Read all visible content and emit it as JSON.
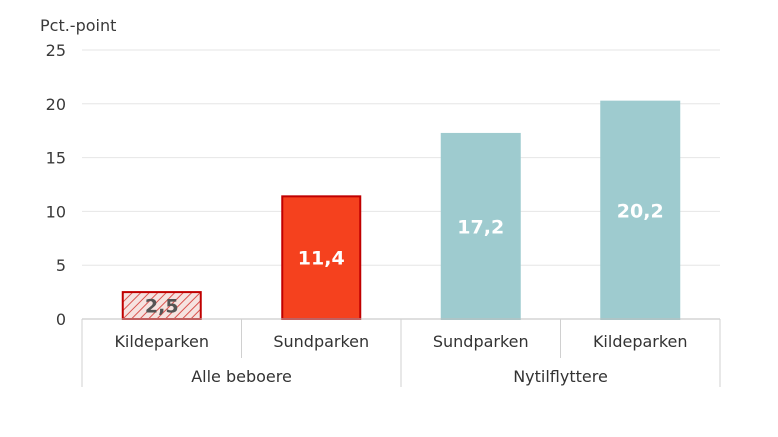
{
  "chart_data": {
    "type": "bar",
    "unit_label": "Pct.-point",
    "ylim": [
      0,
      25
    ],
    "yticks": [
      "0",
      "5",
      "10",
      "15",
      "20",
      "25"
    ],
    "grid": true,
    "groups": [
      {
        "label": "Alle beboere",
        "span": [
          0,
          1
        ]
      },
      {
        "label": "Nytilflyttere",
        "span": [
          2,
          3
        ]
      }
    ],
    "bars": [
      {
        "category": "Kildeparken",
        "value": 2.5,
        "label": "2,5",
        "color": "#f4dcd8",
        "border": "#c00000",
        "hatched": true,
        "label_color": "#555555"
      },
      {
        "category": "Sundparken",
        "value": 11.4,
        "label": "11,4",
        "color": "#f5411e",
        "border": "#c00000",
        "hatched": false,
        "label_color": "#ffffff"
      },
      {
        "category": "Sundparken",
        "value": 17.2,
        "label": "17,2",
        "color": "#9ecbcf",
        "border": "#9ecbcf",
        "hatched": false,
        "label_color": "#ffffff"
      },
      {
        "category": "Kildeparken",
        "value": 20.2,
        "label": "20,2",
        "color": "#9ecbcf",
        "border": "#9ecbcf",
        "hatched": false,
        "label_color": "#ffffff"
      }
    ]
  }
}
